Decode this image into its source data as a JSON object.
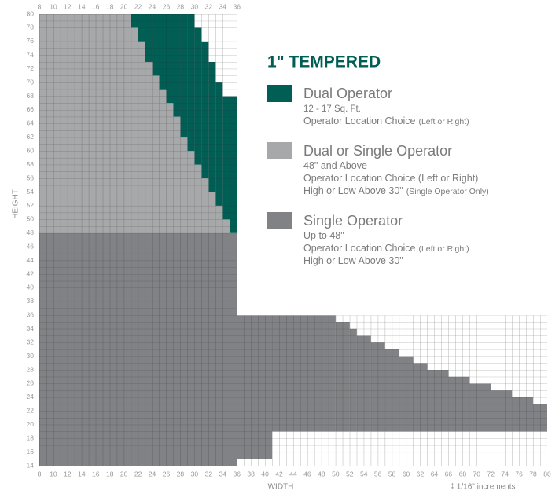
{
  "chart_data": {
    "type": "region-grid",
    "title": "1\" TEMPERED",
    "x_label": "WIDTH",
    "y_label": "HEIGHT",
    "note": "‡ 1/16\" increments",
    "xlim": [
      8,
      80
    ],
    "ylim": [
      14,
      80
    ],
    "xticks_top": [
      8,
      10,
      12,
      14,
      16,
      18,
      20,
      22,
      24,
      26,
      28,
      30,
      32,
      34,
      36
    ],
    "xticks": [
      8,
      10,
      12,
      14,
      16,
      18,
      20,
      22,
      24,
      26,
      28,
      30,
      32,
      34,
      36,
      38,
      40,
      42,
      44,
      46,
      48,
      50,
      52,
      54,
      56,
      58,
      60,
      62,
      64,
      66,
      68,
      70,
      72,
      74,
      76,
      78,
      80
    ],
    "yticks": [
      14,
      16,
      18,
      20,
      22,
      24,
      26,
      28,
      30,
      32,
      34,
      36,
      38,
      40,
      42,
      44,
      46,
      48,
      50,
      52,
      54,
      56,
      58,
      60,
      62,
      64,
      66,
      68,
      70,
      72,
      74,
      76,
      78,
      80
    ],
    "regions": [
      {
        "name": "Dual Operator",
        "color": "#005e54",
        "lines": [
          {
            "text": "12 - 17 Sq. Ft."
          },
          {
            "text": "Operator Location Choice",
            "small": "(Left or Right)"
          }
        ],
        "x0": [
          21,
          22,
          23,
          24,
          25,
          26,
          27,
          28,
          29,
          30,
          31,
          32,
          33,
          34,
          35
        ],
        "x1": [
          22,
          23,
          24,
          25,
          26,
          27,
          28,
          29,
          30,
          31,
          32,
          33,
          34,
          35,
          36
        ],
        "low": [
          78,
          76,
          73,
          71,
          69,
          67,
          65,
          62,
          60,
          58,
          56,
          54,
          52,
          50,
          48
        ],
        "high": [
          80,
          80,
          80,
          80,
          80,
          80,
          80,
          80,
          80,
          78,
          76,
          73,
          70,
          68,
          68
        ]
      },
      {
        "name": "Dual or Single Operator",
        "color": "#a7a8aa",
        "lines": [
          {
            "text": "48\" and Above"
          },
          {
            "text": "Operator Location Choice (Left or Right)"
          },
          {
            "text": "High or Low Above 30\"",
            "small": "(Single Operator Only)"
          }
        ],
        "x0": [
          8,
          21,
          22,
          23,
          24,
          25,
          26,
          27,
          28,
          29,
          30,
          31,
          32,
          33,
          34,
          35
        ],
        "x1": [
          21,
          22,
          23,
          24,
          25,
          26,
          27,
          28,
          29,
          30,
          31,
          32,
          33,
          34,
          35,
          36
        ],
        "low": [
          48,
          48,
          48,
          48,
          48,
          48,
          48,
          48,
          48,
          48,
          48,
          48,
          48,
          48,
          48,
          48
        ],
        "high": [
          80,
          78,
          76,
          73,
          71,
          69,
          67,
          65,
          62,
          60,
          58,
          56,
          54,
          52,
          50,
          48
        ]
      },
      {
        "name": "Single Operator",
        "color": "#818285",
        "lines": [
          {
            "text": "Up to 48\""
          },
          {
            "text": "Operator Location Choice",
            "small": "(Left or Right)"
          },
          {
            "text": "High or Low Above 30\""
          }
        ],
        "x0": [
          8,
          36,
          41,
          50,
          52,
          53,
          55,
          57,
          59,
          61,
          63,
          66,
          69,
          72,
          75,
          78
        ],
        "x1": [
          36,
          41,
          50,
          52,
          53,
          55,
          57,
          59,
          61,
          63,
          66,
          69,
          72,
          75,
          78,
          80
        ],
        "low": [
          14,
          15,
          19,
          19,
          19,
          19,
          19,
          19,
          19,
          19,
          19,
          19,
          19,
          19,
          19,
          19
        ],
        "high": [
          48,
          36,
          36,
          35,
          34,
          33,
          32,
          31,
          30,
          29,
          28,
          27,
          26,
          25,
          24,
          23
        ]
      }
    ]
  }
}
